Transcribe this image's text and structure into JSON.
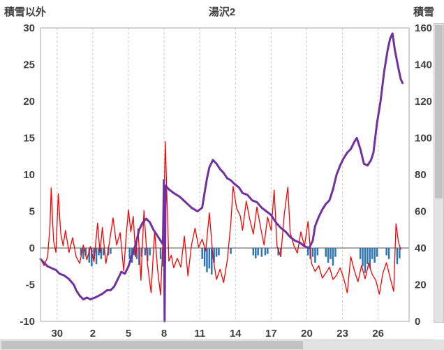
{
  "chart_data": {
    "type": "line",
    "title": "湯沢2",
    "left_axis": {
      "label": "積雪以外",
      "min": -10,
      "max": 30,
      "ticks": [
        30,
        25,
        20,
        15,
        10,
        5,
        0,
        -5,
        -10
      ]
    },
    "right_axis": {
      "label": "積雪",
      "min": 0,
      "max": 160,
      "ticks": [
        160,
        140,
        120,
        100,
        80,
        60,
        40,
        20,
        0
      ]
    },
    "x_axis": {
      "min": 0,
      "max": 31,
      "tick_labels": [
        "30",
        "2",
        "5",
        "8",
        "11",
        "14",
        "17",
        "20",
        "23",
        "26"
      ],
      "tick_positions": [
        1.4,
        4.4,
        7.4,
        10.4,
        13.4,
        16.4,
        19.4,
        22.4,
        25.4,
        28.4
      ]
    },
    "colors": {
      "gridline": "#c6c6c6",
      "frame": "#a6a6a6",
      "zero_line": "#8c8c8c",
      "red_line": "#ff0000",
      "purple_line": "#7030a0",
      "blue_bars": "#2e75b6"
    },
    "grid": "vertical-dashed",
    "legend": "none",
    "series": [
      {
        "id": "blue_bars",
        "type": "bar",
        "axis": "left",
        "color": "#2e75b6",
        "bar_width": 2.5,
        "points": [
          [
            3.4,
            -1
          ],
          [
            3.6,
            -1.5
          ],
          [
            3.8,
            -1
          ],
          [
            4.1,
            -2
          ],
          [
            4.3,
            -2.5
          ],
          [
            4.5,
            -1.5
          ],
          [
            4.7,
            -2.2
          ],
          [
            4.9,
            -1
          ],
          [
            5.1,
            -1.5
          ],
          [
            5.3,
            -1
          ],
          [
            5.7,
            -1
          ],
          [
            5.9,
            -0.8
          ],
          [
            7.5,
            -1.5
          ],
          [
            7.7,
            -2
          ],
          [
            7.9,
            -1
          ],
          [
            8.1,
            -1.5
          ],
          [
            8.3,
            -2.3
          ],
          [
            8.5,
            -1.2
          ],
          [
            8.8,
            -1
          ],
          [
            9,
            -1.8
          ],
          [
            9.2,
            -1
          ],
          [
            10.1,
            -1.5
          ],
          [
            10.3,
            -2.5
          ],
          [
            10.5,
            -2
          ],
          [
            13.6,
            -1.5
          ],
          [
            13.8,
            -2.5
          ],
          [
            14,
            -3.3
          ],
          [
            14.2,
            -2.8
          ],
          [
            14.4,
            -3.6
          ],
          [
            14.6,
            -2
          ],
          [
            14.8,
            -1.2
          ],
          [
            15,
            -1
          ],
          [
            16,
            -0.8
          ],
          [
            17.9,
            -1
          ],
          [
            18.1,
            -1.4
          ],
          [
            18.3,
            -1
          ],
          [
            18.6,
            -1.2
          ],
          [
            18.9,
            -1
          ],
          [
            19.1,
            -0.8
          ],
          [
            20,
            -1
          ],
          [
            20.2,
            -0.8
          ],
          [
            22.5,
            -1
          ],
          [
            22.7,
            -1.5
          ],
          [
            22.9,
            -1.2
          ],
          [
            23.1,
            -2
          ],
          [
            23.3,
            -1
          ],
          [
            24,
            -1.2
          ],
          [
            24.2,
            -2
          ],
          [
            24.4,
            -1.5
          ],
          [
            24.6,
            -2.4
          ],
          [
            24.8,
            -1.2
          ],
          [
            26.9,
            -1.5
          ],
          [
            27.1,
            -2.5
          ],
          [
            27.3,
            -3.4
          ],
          [
            27.5,
            -2.2
          ],
          [
            27.7,
            -2.8
          ],
          [
            27.9,
            -1.5
          ],
          [
            28.1,
            -2
          ],
          [
            28.3,
            -1.2
          ],
          [
            29.1,
            -1
          ],
          [
            29.3,
            -1.5
          ],
          [
            30,
            -2.2
          ],
          [
            30.2,
            -1.4
          ]
        ]
      },
      {
        "id": "red_line",
        "type": "line",
        "axis": "left",
        "color": "#ff0000",
        "width": 1.3,
        "points": [
          [
            0,
            -1.5
          ],
          [
            0.3,
            -2.4
          ],
          [
            0.6,
            -1.2
          ],
          [
            0.8,
            3
          ],
          [
            0.9,
            8.2
          ],
          [
            1.1,
            1
          ],
          [
            1.3,
            -0.6
          ],
          [
            1.5,
            7.4
          ],
          [
            1.7,
            2
          ],
          [
            1.9,
            0.3
          ],
          [
            2.1,
            2.4
          ],
          [
            2.4,
            -0.6
          ],
          [
            2.7,
            1.4
          ],
          [
            3,
            -1.2
          ],
          [
            3.3,
            -2.1
          ],
          [
            3.6,
            0.4
          ],
          [
            3.9,
            -1.6
          ],
          [
            4.2,
            0.2
          ],
          [
            4.5,
            -1.9
          ],
          [
            4.8,
            3.4
          ],
          [
            5,
            -0.6
          ],
          [
            5.2,
            2.8
          ],
          [
            5.5,
            -2.1
          ],
          [
            5.8,
            0.8
          ],
          [
            6.1,
            4.1
          ],
          [
            6.4,
            0.4
          ],
          [
            6.7,
            2.1
          ],
          [
            7,
            -3.1
          ],
          [
            7.2,
            1.5
          ],
          [
            7.4,
            5.2
          ],
          [
            7.6,
            2.2
          ],
          [
            7.8,
            4.3
          ],
          [
            8,
            -1.2
          ],
          [
            8.2,
            2.6
          ],
          [
            8.45,
            -4.4
          ],
          [
            8.7,
            5.1
          ],
          [
            9,
            -2.2
          ],
          [
            9.3,
            -6.1
          ],
          [
            9.6,
            2.3
          ],
          [
            9.85,
            -3
          ],
          [
            10.1,
            -6.4
          ],
          [
            10.35,
            3
          ],
          [
            10.5,
            14.5
          ],
          [
            10.65,
            6
          ],
          [
            10.8,
            -1.8
          ],
          [
            11,
            -1
          ],
          [
            11.2,
            -2.7
          ],
          [
            11.5,
            -1.4
          ],
          [
            11.8,
            -2.6
          ],
          [
            12.1,
            1.6
          ],
          [
            12.4,
            -3.8
          ],
          [
            12.7,
            0.4
          ],
          [
            13,
            2.7
          ],
          [
            13.3,
            0.1
          ],
          [
            13.6,
            1.2
          ],
          [
            13.9,
            -0.4
          ],
          [
            14.2,
            4.8
          ],
          [
            14.5,
            -1.2
          ],
          [
            14.8,
            -4.3
          ],
          [
            15.1,
            -2.9
          ],
          [
            15.4,
            -4.7
          ],
          [
            15.7,
            -1.8
          ],
          [
            16,
            3.2
          ],
          [
            16.2,
            8.4
          ],
          [
            16.5,
            5.4
          ],
          [
            16.8,
            4.4
          ],
          [
            17,
            2.4
          ],
          [
            17.3,
            6.4
          ],
          [
            17.6,
            3.9
          ],
          [
            17.9,
            1.9
          ],
          [
            18.2,
            5.6
          ],
          [
            18.5,
            2.9
          ],
          [
            18.8,
            0.4
          ],
          [
            19.1,
            4.2
          ],
          [
            19.4,
            2.4
          ],
          [
            19.65,
            7.9
          ],
          [
            19.9,
            0.2
          ],
          [
            20.2,
            -1.2
          ],
          [
            20.5,
            4.6
          ],
          [
            20.8,
            8.3
          ],
          [
            21,
            2.1
          ],
          [
            21.3,
            0.4
          ],
          [
            21.6,
            -0.7
          ],
          [
            21.9,
            2.2
          ],
          [
            22.2,
            0.2
          ],
          [
            22.5,
            3.6
          ],
          [
            22.8,
            -2.1
          ],
          [
            23.1,
            -3.2
          ],
          [
            23.4,
            -2.4
          ],
          [
            23.7,
            -4.1
          ],
          [
            24,
            -3.4
          ],
          [
            24.3,
            -2.6
          ],
          [
            24.6,
            -4.3
          ],
          [
            24.9,
            -3.7
          ],
          [
            25.2,
            -2.7
          ],
          [
            25.5,
            -4.1
          ],
          [
            25.8,
            -6.1
          ],
          [
            26.1,
            -1.2
          ],
          [
            26.4,
            -3.1
          ],
          [
            26.7,
            -4.6
          ],
          [
            27,
            -2.4
          ],
          [
            27.3,
            -4.2
          ],
          [
            27.6,
            -2.1
          ],
          [
            27.9,
            -3.6
          ],
          [
            28.2,
            -4.4
          ],
          [
            28.5,
            -6.3
          ],
          [
            28.8,
            -3.4
          ],
          [
            29.1,
            -2
          ],
          [
            29.4,
            -4
          ],
          [
            29.7,
            -5.9
          ],
          [
            29.9,
            3.3
          ],
          [
            30.1,
            0.8
          ],
          [
            30.3,
            -0.2
          ]
        ]
      },
      {
        "id": "purple_line",
        "type": "line",
        "axis": "right",
        "color": "#7030a0",
        "width": 3,
        "points": [
          [
            0,
            34
          ],
          [
            0.6,
            30
          ],
          [
            1.3,
            28
          ],
          [
            1.6,
            26
          ],
          [
            2,
            25
          ],
          [
            2.4,
            23
          ],
          [
            2.8,
            20
          ],
          [
            3,
            17
          ],
          [
            3.3,
            14
          ],
          [
            3.6,
            12
          ],
          [
            3.9,
            13
          ],
          [
            4.2,
            12
          ],
          [
            4.6,
            13
          ],
          [
            4.9,
            14
          ],
          [
            5.2,
            15
          ],
          [
            5.6,
            17
          ],
          [
            5.9,
            17
          ],
          [
            6.2,
            19
          ],
          [
            6.5,
            23
          ],
          [
            6.8,
            27
          ],
          [
            7.1,
            26
          ],
          [
            7.4,
            30
          ],
          [
            7.7,
            36
          ],
          [
            8,
            42
          ],
          [
            8.3,
            50
          ],
          [
            8.6,
            54
          ],
          [
            8.9,
            56
          ],
          [
            9.2,
            54
          ],
          [
            9.5,
            50
          ],
          [
            9.8,
            47
          ],
          [
            10.1,
            44
          ],
          [
            10.3,
            42
          ],
          [
            10.38,
            77
          ],
          [
            10.44,
            0
          ],
          [
            10.52,
            74
          ],
          [
            10.8,
            72
          ],
          [
            11.2,
            70
          ],
          [
            11.7,
            68
          ],
          [
            12.2,
            65
          ],
          [
            12.7,
            62
          ],
          [
            13.2,
            60
          ],
          [
            13.6,
            62
          ],
          [
            13.8,
            70
          ],
          [
            14,
            78
          ],
          [
            14.2,
            84
          ],
          [
            14.5,
            88
          ],
          [
            14.8,
            86
          ],
          [
            15.1,
            83
          ],
          [
            15.4,
            81
          ],
          [
            15.7,
            78
          ],
          [
            16,
            77
          ],
          [
            16.3,
            75
          ],
          [
            16.7,
            73
          ],
          [
            17,
            70
          ],
          [
            17.4,
            69
          ],
          [
            17.8,
            66
          ],
          [
            18.2,
            65
          ],
          [
            18.6,
            62
          ],
          [
            19,
            60
          ],
          [
            19.4,
            58
          ],
          [
            19.8,
            54
          ],
          [
            20.2,
            51
          ],
          [
            20.6,
            49
          ],
          [
            21,
            46
          ],
          [
            21.4,
            44
          ],
          [
            21.8,
            43
          ],
          [
            22.2,
            41
          ],
          [
            22.6,
            40
          ],
          [
            22.9,
            44
          ],
          [
            23.1,
            52
          ],
          [
            23.4,
            57
          ],
          [
            23.7,
            61
          ],
          [
            24,
            64
          ],
          [
            24.3,
            66
          ],
          [
            24.6,
            72
          ],
          [
            24.9,
            80
          ],
          [
            25.2,
            85
          ],
          [
            25.5,
            89
          ],
          [
            25.8,
            92
          ],
          [
            26.1,
            94
          ],
          [
            26.4,
            98
          ],
          [
            26.6,
            100
          ],
          [
            26.9,
            94
          ],
          [
            27.2,
            86
          ],
          [
            27.5,
            85
          ],
          [
            27.8,
            88
          ],
          [
            28,
            92
          ],
          [
            28.3,
            108
          ],
          [
            28.6,
            120
          ],
          [
            28.9,
            136
          ],
          [
            29.2,
            148
          ],
          [
            29.4,
            154
          ],
          [
            29.6,
            157
          ],
          [
            29.8,
            148
          ],
          [
            30.1,
            138
          ],
          [
            30.3,
            132
          ],
          [
            30.45,
            130
          ]
        ]
      }
    ]
  }
}
